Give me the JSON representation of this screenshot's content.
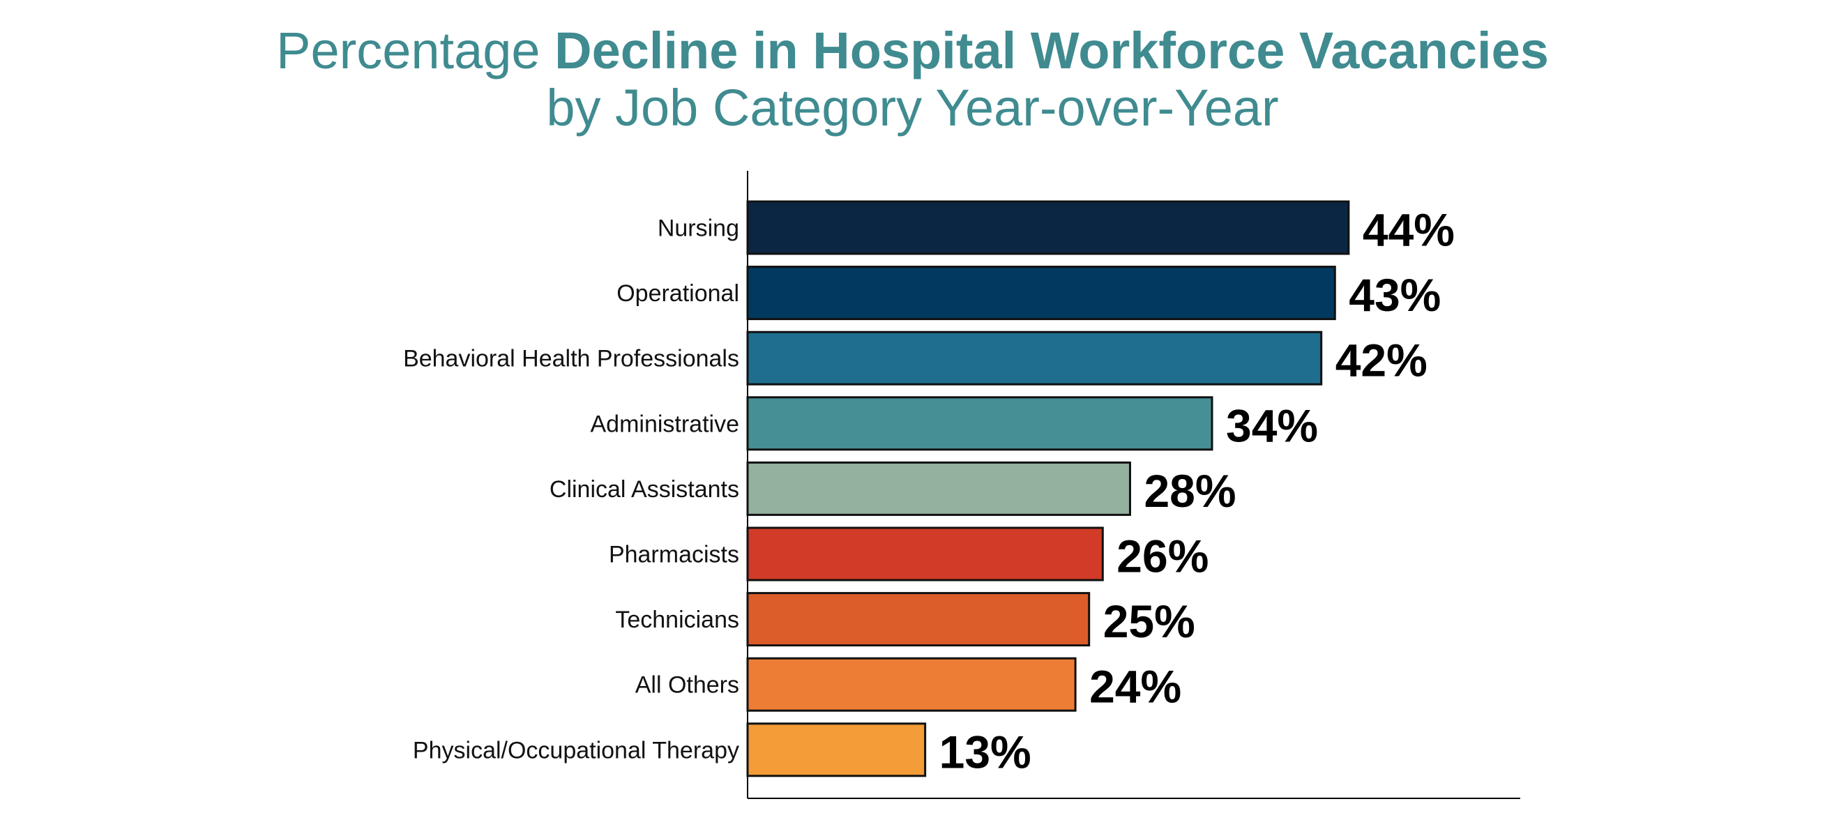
{
  "chart_data": {
    "type": "bar",
    "orientation": "horizontal",
    "title_prefix": "Percentage ",
    "title_bold": "Decline in Hospital Workforce Vacancies",
    "subtitle": "by Job Category Year-over-Year",
    "categories": [
      "Nursing",
      "Operational",
      "Behavioral Health Professionals",
      "Administrative",
      "Clinical Assistants",
      "Pharmacists",
      "Technicians",
      "All Others",
      "Physical/Occupational Therapy"
    ],
    "values": [
      44,
      43,
      42,
      34,
      28,
      26,
      25,
      24,
      13
    ],
    "value_labels": [
      "44%",
      "43%",
      "42%",
      "34%",
      "28%",
      "26%",
      "25%",
      "24%",
      "13%"
    ],
    "colors": [
      "#0b2642",
      "#013a60",
      "#1f6e8f",
      "#468f94",
      "#93b19e",
      "#d13b27",
      "#dc5d29",
      "#ed7d35",
      "#f39c38"
    ],
    "xlim": [
      0,
      56
    ],
    "grid": false,
    "legend": "none"
  }
}
